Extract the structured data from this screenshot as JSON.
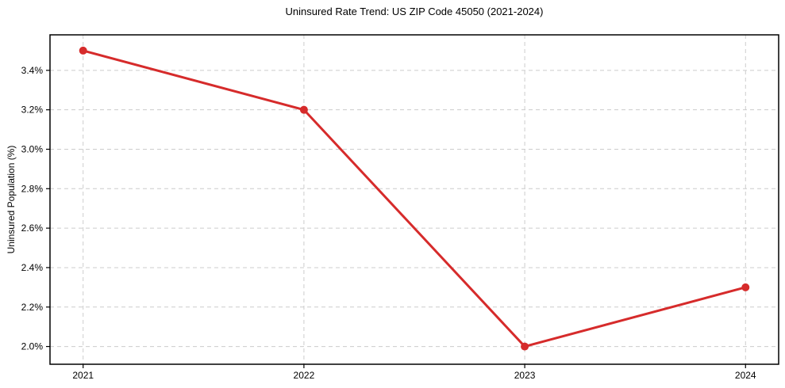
{
  "page": {
    "background": "#ffffff"
  },
  "chart_data": {
    "type": "line",
    "title": "Uninsured Rate Trend: US ZIP Code 45050 (2021-2024)",
    "xlabel": "",
    "ylabel": "Uninsured Population (%)",
    "x": [
      2021,
      2022,
      2023,
      2024
    ],
    "series": [
      {
        "name": "Uninsured Rate",
        "values": [
          3.5,
          3.2,
          2.0,
          2.3
        ],
        "color": "#d62b2b",
        "marker": "circle",
        "line_width": 3,
        "marker_radius": 5
      }
    ],
    "x_tick_labels": [
      "2021",
      "2022",
      "2023",
      "2024"
    ],
    "y_ticks": [
      2.0,
      2.2,
      2.4,
      2.6,
      2.8,
      3.0,
      3.2,
      3.4
    ],
    "y_tick_labels": [
      "2.0%",
      "2.2%",
      "2.4%",
      "2.6%",
      "2.8%",
      "3.0%",
      "3.2%",
      "3.4%"
    ],
    "xlim": [
      2020.85,
      2024.15
    ],
    "ylim": [
      1.91,
      3.58
    ],
    "grid": true,
    "grid_color": "#cccccc",
    "frame_color": "#000000",
    "legend": "none"
  }
}
